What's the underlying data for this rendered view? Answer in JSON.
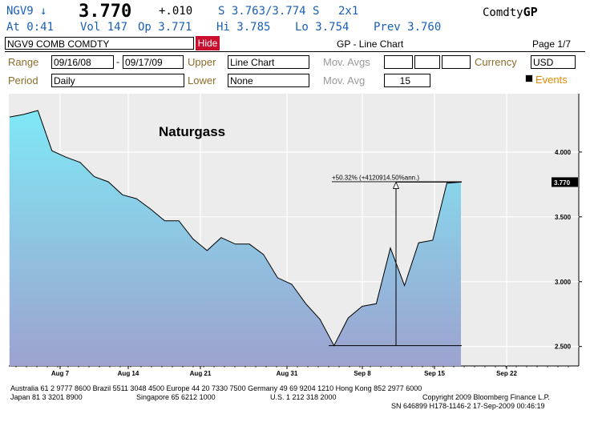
{
  "quote": {
    "ticker": "NGV9",
    "arrow": "↓",
    "last": "3.770",
    "change": "+.010",
    "bid_ask": "S 3.763/3.774 S",
    "size": "2x1",
    "brand_prefix": "Comdty",
    "brand_suffix": "GP",
    "line2": {
      "at": "At  0:41",
      "vol": "Vol 147",
      "op": "Op 3.771",
      "hi": "Hi 3.785",
      "lo": "Lo 3.754",
      "prev": "Prev 3.760"
    }
  },
  "toolbar": {
    "security": "NGV9 COMB COMDTY",
    "hide_label": "Hide",
    "screen_title": "GP - Line Chart",
    "page": "Page 1/7"
  },
  "params": {
    "range_label": "Range",
    "range_from": "09/16/08",
    "range_dash": "-",
    "range_to": "09/17/09",
    "upper_label": "Upper",
    "upper_value": "Line Chart",
    "movavgs_label": "Mov. Avgs",
    "currency_label": "Currency",
    "currency_value": "USD",
    "period_label": "Period",
    "period_value": "Daily",
    "lower_label": "Lower",
    "lower_value": "None",
    "movavg_label": "Mov. Avg",
    "movavg_value": "15",
    "events_label": "Events"
  },
  "chart_data": {
    "type": "area",
    "title": "Naturgass",
    "x_tick_labels": [
      "Aug 7",
      "Aug 14",
      "Aug 21",
      "Aug 31",
      "Sep 8",
      "Sep 15",
      "Sep 22"
    ],
    "y_tick_labels": [
      "4.000",
      "3.500",
      "3.000",
      "2.500"
    ],
    "ylim": [
      2.35,
      4.45
    ],
    "last_value_label": "3.770",
    "annotation": "+50.32% (+4120914.50%ann.)",
    "annotation_low": 2.507,
    "annotation_high": 3.768,
    "values": [
      4.27,
      4.29,
      4.32,
      4.01,
      3.96,
      3.92,
      3.81,
      3.77,
      3.67,
      3.64,
      3.56,
      3.47,
      3.47,
      3.33,
      3.24,
      3.34,
      3.29,
      3.29,
      3.21,
      3.03,
      2.98,
      2.83,
      2.71,
      2.507,
      2.72,
      2.81,
      2.83,
      3.26,
      2.97,
      3.3,
      3.32,
      3.76,
      3.768
    ],
    "grid": true,
    "fill_top": "#7fe8f6",
    "fill_bottom": "#9da2cf",
    "plot_bg": "#ececec"
  },
  "footer": {
    "line1": "Australia 61 2 9777 8600 Brazil 5511 3048 4500 Europe 44 20 7330 7500 Germany 49 69 9204 1210 Hong Kong 852 2977 6000",
    "line2_left": "Japan 81 3 3201 8900",
    "line2_sg": "Singapore 65 6212 1000",
    "line2_us": "U.S. 1 212 318 2000",
    "line2_copy": "Copyright 2009 Bloomberg Finance L.P.",
    "line3": "SN 646899 H178-1146-2 17-Sep-2009 00:46:19"
  }
}
